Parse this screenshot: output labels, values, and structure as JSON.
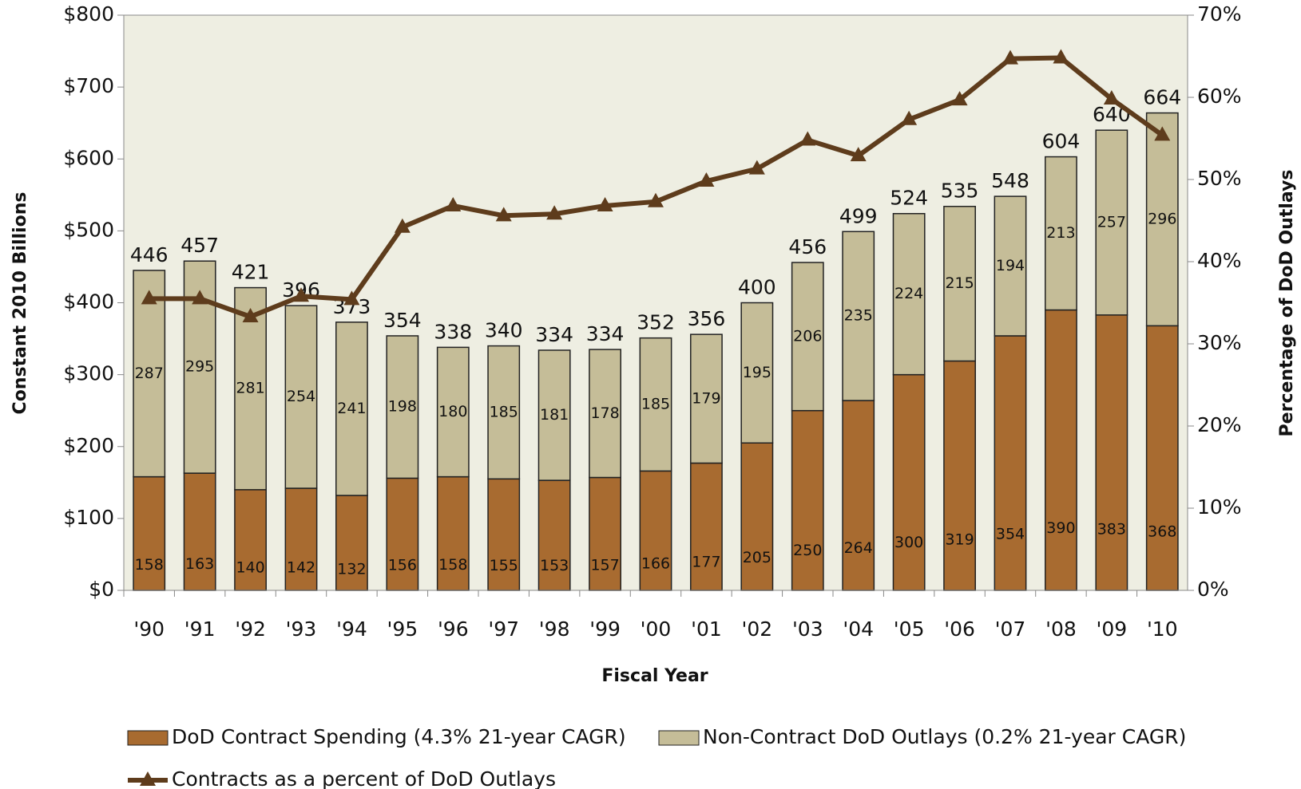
{
  "chart_data": {
    "type": "bar",
    "x_label": "Fiscal Year",
    "y_label": "Constant 2010 Billions",
    "y2_label": "Percentage of DoD Outlays",
    "stacked": true,
    "categories": [
      "'90",
      "'91",
      "'92",
      "'93",
      "'94",
      "'95",
      "'96",
      "'97",
      "'98",
      "'99",
      "'00",
      "'01",
      "'02",
      "'03",
      "'04",
      "'05",
      "'06",
      "'07",
      "'08",
      "'09",
      "'10"
    ],
    "series": [
      {
        "name": "DoD Contract Spending (4.3% 21-year CAGR)",
        "color": "#a86b30",
        "type": "bar",
        "values": [
          158,
          163,
          140,
          142,
          132,
          156,
          158,
          155,
          153,
          157,
          166,
          177,
          205,
          250,
          264,
          300,
          319,
          354,
          390,
          383,
          368
        ]
      },
      {
        "name": "Non-Contract DoD Outlays (0.2% 21-year CAGR)",
        "color": "#c5bd98",
        "type": "bar",
        "values": [
          287,
          295,
          281,
          254,
          241,
          198,
          180,
          185,
          181,
          178,
          185,
          179,
          195,
          206,
          235,
          224,
          215,
          194,
          213,
          257,
          296
        ]
      },
      {
        "name": "Contracts as a percent of DoD Outlays",
        "color": "#5e3c1c",
        "type": "line",
        "axis": "y2",
        "values": [
          35.5,
          35.5,
          33.3,
          35.8,
          35.4,
          44.2,
          46.8,
          45.6,
          45.8,
          46.8,
          47.3,
          49.8,
          51.3,
          54.8,
          52.9,
          57.3,
          59.7,
          64.7,
          64.8,
          59.8,
          55.4
        ]
      }
    ],
    "totals": [
      446,
      457,
      421,
      396,
      373,
      354,
      338,
      340,
      334,
      334,
      352,
      356,
      400,
      456,
      499,
      524,
      535,
      548,
      604,
      640,
      664
    ],
    "ylim": [
      0,
      800
    ],
    "yticks": [
      {
        "value": 0,
        "label": "$0"
      },
      {
        "value": 100,
        "label": "$100"
      },
      {
        "value": 200,
        "label": "$200"
      },
      {
        "value": 300,
        "label": "$300"
      },
      {
        "value": 400,
        "label": "$400"
      },
      {
        "value": 500,
        "label": "$500"
      },
      {
        "value": 600,
        "label": "$600"
      },
      {
        "value": 700,
        "label": "$700"
      },
      {
        "value": 800,
        "label": "$800"
      }
    ],
    "y2lim": [
      0,
      70
    ],
    "y2ticks": [
      {
        "value": 0,
        "label": "0%"
      },
      {
        "value": 10,
        "label": "10%"
      },
      {
        "value": 20,
        "label": "20%"
      },
      {
        "value": 30,
        "label": "30%"
      },
      {
        "value": 40,
        "label": "40%"
      },
      {
        "value": 50,
        "label": "50%"
      },
      {
        "value": 60,
        "label": "60%"
      },
      {
        "value": 70,
        "label": "70%"
      }
    ],
    "plot_background": "#eeeee2",
    "legend": "bottom"
  }
}
